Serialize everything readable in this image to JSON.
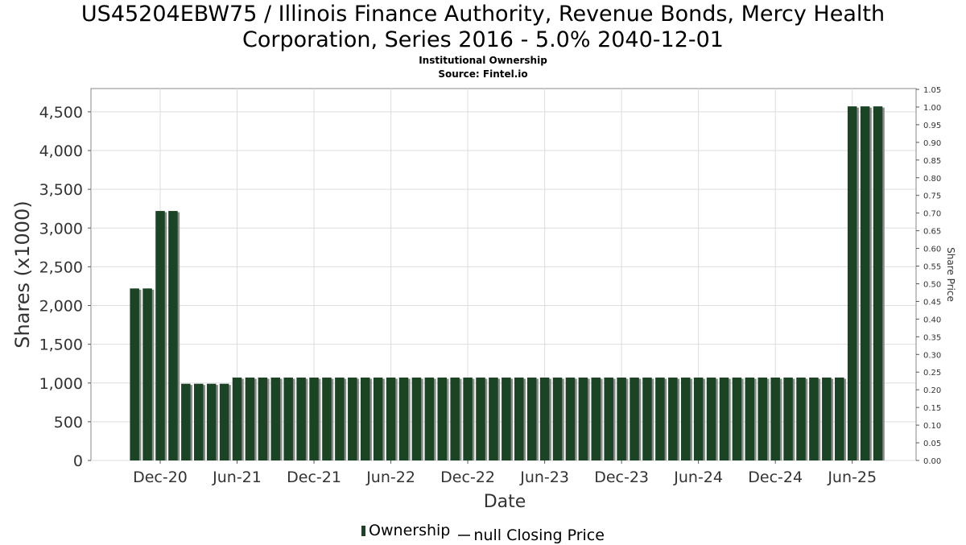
{
  "title_line1": "US45204EBW75 / Illinois Finance Authority, Revenue Bonds, Mercy Health",
  "title_line2": "Corporation, Series 2016 - 5.0% 2040-12-01",
  "subtitle_line1": "Institutional Ownership",
  "subtitle_line2": "Source: Fintel.io",
  "legend": {
    "ownership": "Ownership",
    "price": "null Closing Price"
  },
  "colors": {
    "bar": "#1a4423",
    "bar_shadow": "#8a8a8a",
    "grid": "#dddddd",
    "axis": "#888888"
  },
  "chart_data": {
    "type": "bar",
    "xlabel": "Date",
    "ylabel": "Shares (x1000)",
    "y2label": "Share Price",
    "ylim": [
      0,
      4800
    ],
    "y2lim": [
      0,
      1.05
    ],
    "grid": true,
    "legend_position": "bottom",
    "x_ticks": [
      "Dec-20",
      "Jun-21",
      "Dec-21",
      "Jun-22",
      "Dec-22",
      "Jun-23",
      "Dec-23",
      "Jun-24",
      "Dec-24",
      "Jun-25"
    ],
    "y_ticks": [
      "0",
      "500",
      "1,000",
      "1,500",
      "2,000",
      "2,500",
      "3,000",
      "3,500",
      "4,000",
      "4,500"
    ],
    "y2_ticks": [
      "0.00",
      "0.05",
      "0.10",
      "0.15",
      "0.20",
      "0.25",
      "0.30",
      "0.35",
      "0.40",
      "0.45",
      "0.50",
      "0.55",
      "0.60",
      "0.65",
      "0.70",
      "0.75",
      "0.80",
      "0.85",
      "0.90",
      "0.95",
      "1.00",
      "1.05"
    ],
    "series": [
      {
        "name": "Ownership",
        "x": [
          "2020-10-01",
          "2020-11-01",
          "2020-12-01",
          "2021-01-01",
          "2021-02-01",
          "2021-03-01",
          "2021-04-01",
          "2021-05-01",
          "2021-06-01",
          "2021-07-01",
          "2021-08-01",
          "2021-09-01",
          "2021-10-01",
          "2021-11-01",
          "2021-12-01",
          "2022-01-01",
          "2022-02-01",
          "2022-03-01",
          "2022-04-01",
          "2022-05-01",
          "2022-06-01",
          "2022-07-01",
          "2022-08-01",
          "2022-09-01",
          "2022-10-01",
          "2022-11-01",
          "2022-12-01",
          "2023-01-01",
          "2023-02-01",
          "2023-03-01",
          "2023-04-01",
          "2023-05-01",
          "2023-06-01",
          "2023-07-01",
          "2023-08-01",
          "2023-09-01",
          "2023-10-01",
          "2023-11-01",
          "2023-12-01",
          "2024-01-01",
          "2024-02-01",
          "2024-03-01",
          "2024-04-01",
          "2024-05-01",
          "2024-06-01",
          "2024-07-01",
          "2024-08-01",
          "2024-09-01",
          "2024-10-01",
          "2024-11-01",
          "2024-12-01",
          "2025-01-01",
          "2025-02-01",
          "2025-03-01",
          "2025-04-01",
          "2025-05-01",
          "2025-06-01",
          "2025-07-01",
          "2025-08-01"
        ],
        "values": [
          2220,
          2220,
          3220,
          3220,
          990,
          990,
          990,
          990,
          1070,
          1070,
          1070,
          1070,
          1070,
          1070,
          1070,
          1070,
          1070,
          1070,
          1070,
          1070,
          1070,
          1070,
          1070,
          1070,
          1070,
          1070,
          1070,
          1070,
          1070,
          1070,
          1070,
          1070,
          1070,
          1070,
          1070,
          1070,
          1070,
          1070,
          1070,
          1070,
          1070,
          1070,
          1070,
          1070,
          1070,
          1070,
          1070,
          1070,
          1070,
          1070,
          1070,
          1070,
          1070,
          1070,
          1070,
          1070,
          4570,
          4570,
          4570
        ]
      }
    ]
  }
}
